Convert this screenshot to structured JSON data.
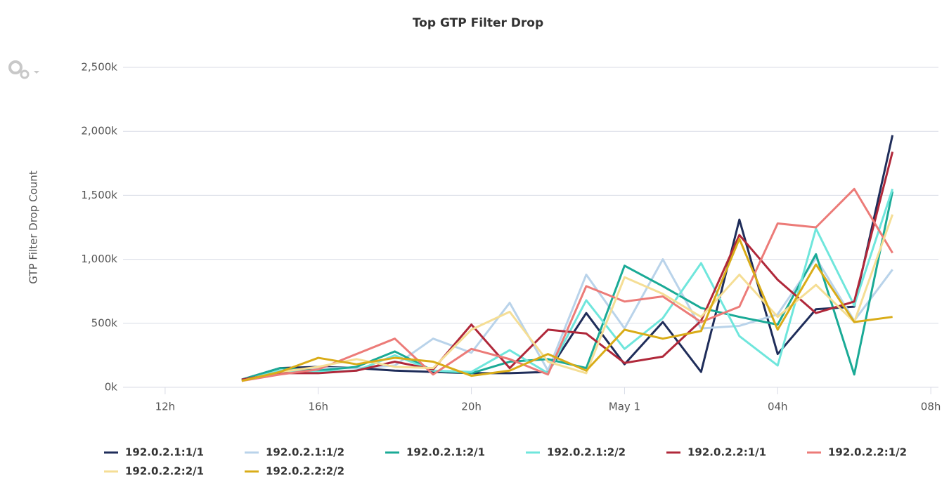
{
  "chart_data": {
    "type": "line",
    "title": "Top GTP Filter Drop",
    "y_label": "GTP Filter Drop Count",
    "x": [
      14,
      15,
      16,
      17,
      18,
      19,
      20,
      21,
      22,
      23,
      24,
      25,
      26,
      27,
      28,
      29,
      30,
      31
    ],
    "xlim": [
      10.9,
      32.2
    ],
    "xticks": [
      {
        "value": 12,
        "label": "12h"
      },
      {
        "value": 16,
        "label": "16h"
      },
      {
        "value": 20,
        "label": "20h"
      },
      {
        "value": 24,
        "label": "May 1"
      },
      {
        "value": 28,
        "label": "04h"
      },
      {
        "value": 32,
        "label": "08h"
      }
    ],
    "ylim": [
      0,
      2500
    ],
    "yticks": [
      {
        "value": 0,
        "label": "0k"
      },
      {
        "value": 500,
        "label": "500k"
      },
      {
        "value": 1000,
        "label": "1,000k"
      },
      {
        "value": 1500,
        "label": "1,500k"
      },
      {
        "value": 2000,
        "label": "2,000k"
      },
      {
        "value": 2500,
        "label": "2,500k"
      }
    ],
    "grid": true,
    "series": [
      {
        "name": "192.0.2.1:1/1",
        "color": "#1f2d5a",
        "values": [
          60,
          150,
          160,
          150,
          130,
          120,
          110,
          110,
          120,
          580,
          180,
          510,
          120,
          1310,
          260,
          610,
          630,
          1970
        ]
      },
      {
        "name": "192.0.2.1:1/2",
        "color": "#b9d3ea",
        "values": [
          60,
          120,
          150,
          150,
          170,
          380,
          270,
          660,
          130,
          880,
          460,
          1000,
          460,
          480,
          570,
          1010,
          520,
          920
        ]
      },
      {
        "name": "192.0.2.1:2/1",
        "color": "#1aaa96",
        "values": [
          60,
          150,
          130,
          160,
          280,
          130,
          110,
          200,
          220,
          150,
          950,
          790,
          620,
          550,
          490,
          1040,
          100,
          1530
        ]
      },
      {
        "name": "192.0.2.1:2/2",
        "color": "#6fe6dc",
        "values": [
          50,
          130,
          120,
          130,
          250,
          130,
          120,
          290,
          110,
          680,
          300,
          540,
          970,
          400,
          170,
          1240,
          640,
          1550
        ]
      },
      {
        "name": "192.0.2.2:1/1",
        "color": "#b0283a",
        "values": [
          60,
          110,
          110,
          130,
          200,
          140,
          490,
          150,
          450,
          420,
          190,
          240,
          520,
          1190,
          840,
          580,
          670,
          1840
        ]
      },
      {
        "name": "192.0.2.2:1/2",
        "color": "#ec7b78",
        "values": [
          50,
          100,
          140,
          260,
          380,
          100,
          300,
          220,
          100,
          790,
          670,
          710,
          510,
          630,
          1280,
          1250,
          1550,
          1050
        ]
      },
      {
        "name": "192.0.2.2:2/1",
        "color": "#f5de95",
        "values": [
          50,
          120,
          160,
          220,
          160,
          150,
          450,
          590,
          200,
          110,
          860,
          730,
          550,
          880,
          550,
          800,
          510,
          1350
        ]
      },
      {
        "name": "192.0.2.2:2/2",
        "color": "#d9ac18",
        "values": [
          50,
          120,
          230,
          180,
          230,
          200,
          90,
          130,
          260,
          130,
          450,
          380,
          440,
          1160,
          450,
          960,
          510,
          550
        ]
      }
    ]
  }
}
